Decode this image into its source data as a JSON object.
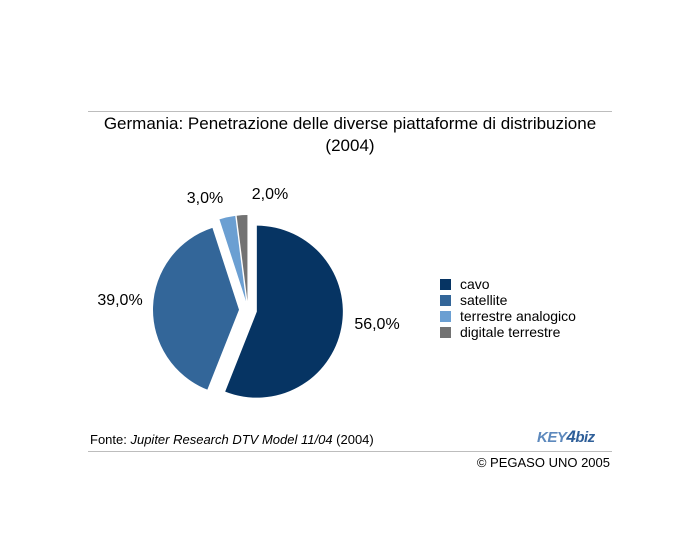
{
  "chart_data": {
    "type": "pie",
    "title": "Germania: Penetrazione delle diverse piattaforme di distribuzione (2004)",
    "title_lines": [
      "Germania: Penetrazione delle diverse piattaforme di distribuzione",
      "(2004)"
    ],
    "categories": [
      "cavo",
      "satellite",
      "terrestre analogico",
      "digitale terrestre"
    ],
    "values": [
      56.0,
      39.0,
      3.0,
      2.0
    ],
    "data_labels": [
      "56,0%",
      "39,0%",
      "3,0%",
      "2,0%"
    ],
    "colors": [
      "#063463",
      "#336699",
      "#6b9fd2",
      "#727272"
    ],
    "exploded": true,
    "legend_position": "right"
  },
  "source": {
    "prefix": "Fonte: ",
    "italic": "Jupiter Research DTV Model 11/04",
    "suffix": " (2004)"
  },
  "logo": {
    "part1": "KEY",
    "part2": "4",
    "part3": "biz"
  },
  "copyright": "© PEGASO UNO 2005"
}
